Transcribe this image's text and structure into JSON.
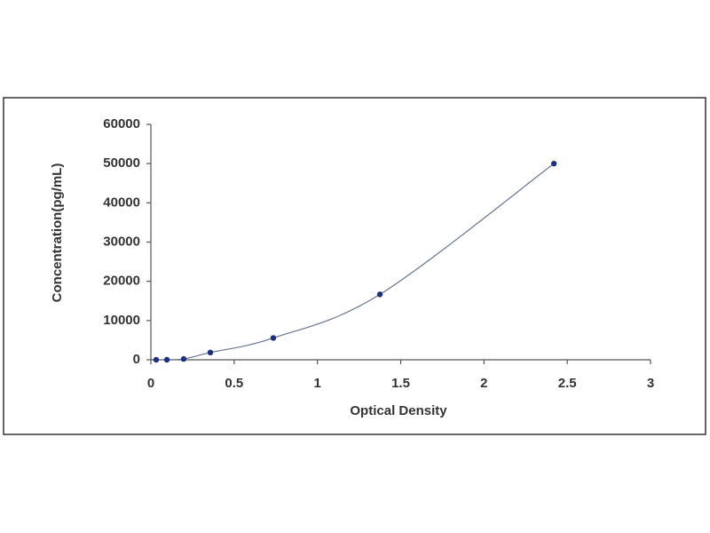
{
  "chart_data": {
    "type": "scatter",
    "x_label": "Optical Density",
    "y_label": "Concentration(pg/mL)",
    "series": [
      {
        "color": "#1f2f80",
        "x": [
          0.032,
          0.096,
          0.197,
          0.357,
          0.735,
          1.375,
          2.42
        ],
        "values": [
          0,
          0,
          206,
          1852,
          5556,
          16667,
          50000
        ]
      }
    ],
    "curve": true,
    "xlim": [
      0,
      3
    ],
    "xticks": [
      0,
      0.5,
      1,
      1.5,
      2,
      2.5,
      3
    ],
    "ylim": [
      0,
      60000
    ],
    "yticks": [
      0,
      10000,
      20000,
      30000,
      40000,
      50000,
      60000
    ],
    "grid": false
  }
}
